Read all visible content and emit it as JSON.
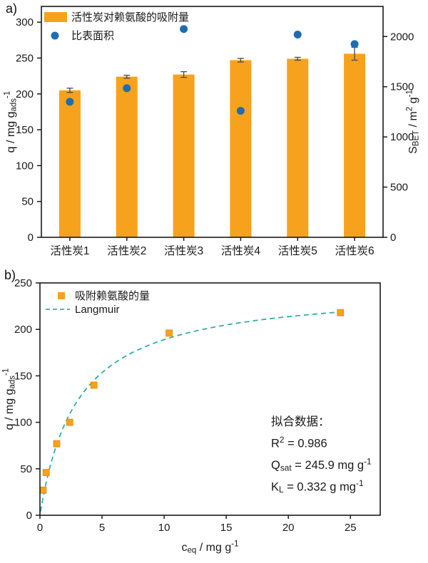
{
  "panels": {
    "a": {
      "tag": "a)"
    },
    "b": {
      "tag": "b)"
    }
  },
  "colors": {
    "bar_orange": "#F7A21C",
    "marker_orange_edge": "#E08E00",
    "dot_blue": "#1E6DB3",
    "fit_teal": "#33AFA6",
    "axis_black": "#1A1A1A",
    "error_bar": "#4A4A4A"
  },
  "chart_data": [
    {
      "panel": "a",
      "type": "bar",
      "categories": [
        "活性炭1",
        "活性炭2",
        "活性炭3",
        "活性炭4",
        "活性炭5",
        "活性炭6"
      ],
      "series": [
        {
          "name": "活性炭对赖氨酸的吸附量",
          "type": "bar",
          "axis": "left",
          "values": [
            205,
            224,
            227,
            247,
            249,
            256
          ],
          "errors": [
            3,
            2,
            4,
            2.5,
            2,
            9
          ]
        },
        {
          "name": "比表面积",
          "type": "scatter",
          "axis": "right",
          "values": [
            1350,
            1485,
            2075,
            1260,
            2020,
            1925
          ]
        }
      ],
      "left_axis": {
        "label": [
          {
            "t": "q / mg g"
          },
          {
            "t": "ads",
            "s": "sub"
          },
          {
            "t": "-1",
            "s": "sup"
          }
        ],
        "ticks": [
          0,
          50,
          100,
          150,
          200,
          250,
          300
        ],
        "range": [
          0,
          322
        ]
      },
      "right_axis": {
        "label": [
          {
            "t": "S"
          },
          {
            "t": "BET",
            "s": "sub"
          },
          {
            "t": " / m"
          },
          {
            "t": "2",
            "s": "sup"
          },
          {
            "t": " g"
          },
          {
            "t": "-1",
            "s": "sup"
          }
        ],
        "ticks": [
          0,
          500,
          1000,
          1500,
          2000
        ],
        "range": [
          0,
          2300
        ]
      },
      "legend": [
        {
          "swatch": "bar",
          "label": "活性炭对赖氨酸的吸附量"
        },
        {
          "swatch": "dot",
          "label": "比表面积"
        }
      ],
      "grid": false,
      "legend_position": "top-left-inside"
    },
    {
      "panel": "b",
      "type": "scatter",
      "series": [
        {
          "name": "吸附赖氨酸的量",
          "type": "scatter",
          "x": [
            0.25,
            0.5,
            1.35,
            2.4,
            4.35,
            10.4,
            24.2
          ],
          "y": [
            27,
            46,
            77,
            100,
            140,
            196,
            218
          ]
        },
        {
          "name": "Langmuir",
          "type": "fit-line",
          "model": "langmuir",
          "q_sat": 245.9,
          "k_l": 0.332,
          "x_start": 0.05,
          "x_end": 24.2,
          "dashed": true
        }
      ],
      "x_axis": {
        "label": [
          {
            "t": "c"
          },
          {
            "t": "eq",
            "s": "sub"
          },
          {
            "t": " / mg g"
          },
          {
            "t": "-1",
            "s": "sup"
          }
        ],
        "ticks": [
          0,
          5,
          10,
          15,
          20,
          25
        ],
        "range": [
          0,
          27.4
        ]
      },
      "y_axis": {
        "label": [
          {
            "t": "q / mg g"
          },
          {
            "t": "ads",
            "s": "sub"
          },
          {
            "t": "-1",
            "s": "sup"
          }
        ],
        "ticks": [
          0,
          50,
          100,
          150,
          200,
          250
        ],
        "range": [
          0,
          250
        ]
      },
      "legend": [
        {
          "swatch": "square",
          "label": "吸附赖氨酸的量"
        },
        {
          "swatch": "dash",
          "label": "Langmuir"
        }
      ],
      "annotation": [
        [
          {
            "t": "拟合数据："
          }
        ],
        [
          {
            "t": "R"
          },
          {
            "t": "2",
            "s": "sup"
          },
          {
            "t": " = 0.986"
          }
        ],
        [
          {
            "t": "Q"
          },
          {
            "t": "sat",
            "s": "sub"
          },
          {
            "t": " = 245.9 mg g"
          },
          {
            "t": "-1",
            "s": "sup"
          }
        ],
        [
          {
            "t": "K"
          },
          {
            "t": "L",
            "s": "sub"
          },
          {
            "t": " = 0.332 g mg"
          },
          {
            "t": "-1",
            "s": "sup"
          }
        ]
      ],
      "grid": false,
      "legend_position": "top-left-inside"
    }
  ]
}
